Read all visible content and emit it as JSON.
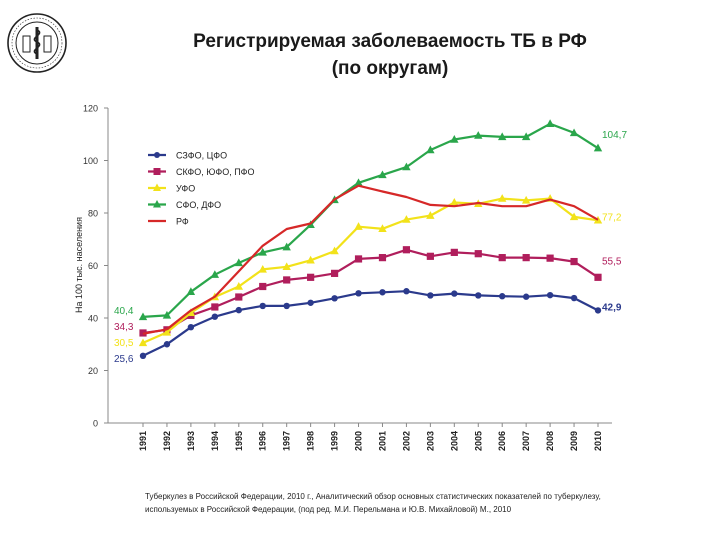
{
  "header": {
    "title_line1": "Регистрируемая заболеваемость ТБ в РФ",
    "title_line2": "(по округам)"
  },
  "source": {
    "line1": "Туберкулез  в Российской Федерации, 2010 г., Аналитический обзор основных статистических показателей по туберкулезу,",
    "line2": "используемых в Российской Федерации, (под ред. М.И. Перельмана и Ю.В. Михайловой) М., 2010"
  },
  "chart_data": {
    "type": "line",
    "title": "Регистрируемая заболеваемость ТБ в РФ (по округам)",
    "xlabel": "",
    "ylabel": "На 100 тыс. населения",
    "ylim": [
      0,
      120
    ],
    "yticks": [
      0,
      20,
      40,
      60,
      80,
      100,
      120
    ],
    "grid": false,
    "legend_position": "top-left",
    "categories": [
      "1991",
      "1992",
      "1993",
      "1994",
      "1995",
      "1996",
      "1997",
      "1998",
      "1999",
      "2000",
      "2001",
      "2002",
      "2003",
      "2004",
      "2005",
      "2006",
      "2007",
      "2008",
      "2009",
      "2010"
    ],
    "series": [
      {
        "name": "СЗФО, ЦФО",
        "color": "#2b3a8c",
        "marker": "circle",
        "start_label": "25,6",
        "end_label": "42,9",
        "values": [
          25.6,
          30.0,
          36.5,
          40.5,
          43.0,
          44.6,
          44.6,
          45.8,
          47.5,
          49.4,
          49.8,
          50.2,
          48.6,
          49.3,
          48.6,
          48.3,
          48.1,
          48.7,
          47.6,
          42.9
        ]
      },
      {
        "name": "СКФО, ЮФО, ПФО",
        "color": "#b01e5c",
        "marker": "square",
        "start_label": "34,3",
        "end_label": "55,5",
        "values": [
          34.3,
          35.5,
          41.0,
          44.2,
          48.0,
          52.0,
          54.5,
          55.5,
          57.0,
          62.5,
          63.0,
          66.0,
          63.5,
          65.0,
          64.5,
          63.0,
          63.0,
          62.8,
          61.5,
          55.5
        ]
      },
      {
        "name": "УФО",
        "color": "#f2e21a",
        "marker": "triangle",
        "start_label": "30,5",
        "end_label": "77,2",
        "values": [
          30.5,
          34.5,
          42.0,
          48.0,
          52.0,
          58.5,
          59.5,
          62.0,
          65.5,
          74.8,
          74.0,
          77.5,
          79.0,
          84.0,
          83.5,
          85.5,
          84.8,
          85.5,
          78.5,
          77.2
        ]
      },
      {
        "name": "СФО, ДФО",
        "color": "#2aa64b",
        "marker": "triangle",
        "start_label": "40,4",
        "end_label": "104,7",
        "values": [
          40.4,
          41.0,
          50.0,
          56.5,
          61.0,
          65.0,
          67.0,
          75.5,
          85.0,
          91.5,
          94.5,
          97.5,
          104.0,
          108.0,
          109.5,
          109.0,
          109.0,
          114.0,
          110.5,
          104.7
        ]
      },
      {
        "name": "РФ",
        "color": "#d62828",
        "marker": "none",
        "start_label": "",
        "end_label": "",
        "values": [
          34.0,
          35.7,
          42.9,
          48.1,
          57.8,
          67.5,
          73.9,
          76.0,
          85.2,
          90.4,
          88.2,
          86.1,
          83.1,
          82.6,
          83.8,
          82.6,
          82.6,
          85.1,
          82.6,
          77.4
        ]
      }
    ]
  }
}
